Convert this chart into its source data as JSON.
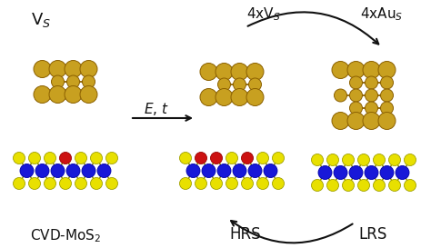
{
  "bg_color": "#ffffff",
  "gold_color": "#C8A020",
  "gold_edge": "#8B6000",
  "yellow_color": "#E8E000",
  "yellow_edge": "#A0A000",
  "blue_color": "#1818D8",
  "blue_edge": "#0000AA",
  "red_color": "#CC1111",
  "red_edge": "#990000",
  "arrow_color": "#111111",
  "text_color": "#111111",
  "label_cvd": "CVD-MoS$_2$",
  "label_vs": "V$_S$",
  "label_et": "$E$, $t$",
  "label_4vs": "4xV$_S$",
  "label_4aus": "4xAu$_S$",
  "label_hrs": "HRS",
  "label_lrs": "LRS",
  "fig_width": 4.74,
  "fig_height": 2.73
}
